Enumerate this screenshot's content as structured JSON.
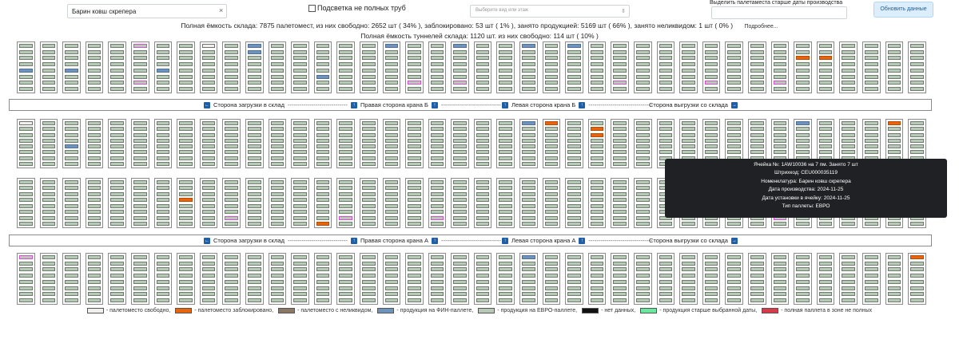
{
  "toolbar": {
    "search_value": "Барин ковш скрепера",
    "clear_icon": "×",
    "highlight_label": "Подсветка не полных труб",
    "view_placeholder": "Выберите вид или этаж",
    "date_label": "Выделить палетаместа старше даты производства",
    "refresh_label": "Обновить данные"
  },
  "summary": {
    "line1": "Полная ёмкость склада: 7875 палетомест, из них свободно: 2652 шт ( 34% ), заблокировано: 53 шт ( 1% ), занято продукцией: 5169 шт ( 66% ), занято неликвидом: 1 шт ( 0% )",
    "more_link": "Подробнее...",
    "line2": "Полная ёмкость туннелей склада: 1120 шт. из них свободно: 114 шт ( 10% )"
  },
  "colors": {
    "free": "#f2f0ec",
    "blocked": "#e8650d",
    "illiquid": "#8b7763",
    "fin": "#6e93bd",
    "euro": "#b8c9b8",
    "nodata": "#111111",
    "older": "#6ae8a0",
    "full_in_partial": "#d93a4a",
    "highlight": "#d84ed0",
    "button": "#1f5fa6"
  },
  "crane_b": {
    "load_side": "Сторона загрузки в склад",
    "right_side": "Правая сторона крана Б",
    "left_side": "Левая сторона крана Б",
    "unload_side": "Сторона выгрузки со склада",
    "arrow_left": "←",
    "arrow_right": "→",
    "arrow_up": "↑"
  },
  "crane_a": {
    "load_side": "Сторона загрузки в склад",
    "right_side": "Правая сторона крана А",
    "left_side": "Левая сторона крана А",
    "unload_side": "Сторона выгрузки со склада",
    "arrow_left": "←",
    "arrow_right": "→",
    "arrow_up": "↑"
  },
  "tooltip": {
    "line1": "Ячейка №: 1AW10036 на 7 пм. Занято 7 шт",
    "line2": "Штрихкод: CEU000035119",
    "line3": "Номенклатура: Барин ковш скрепера",
    "line4": "Дата производства: 2024-11-25",
    "line5": "Дата установки в ячейку: 2024-11-25",
    "line6": "Тип паллеты: ЕВРО"
  },
  "legend": [
    {
      "label": "- палетоместо свободно,",
      "color": "#f2f0ec"
    },
    {
      "label": "- палетоместо заблокировано,",
      "color": "#e8650d"
    },
    {
      "label": "- палетоместо с неликвидом,",
      "color": "#8b7763"
    },
    {
      "label": "- продукция на ФИН-паллете,",
      "color": "#6e93bd"
    },
    {
      "label": "- продукция на ЕВРО-паллете,",
      "color": "#b8c9b8"
    },
    {
      "label": "- нет данных,",
      "color": "#111111"
    },
    {
      "label": "- продукция старше выбранной даты,",
      "color": "#6ae8a0"
    },
    {
      "label": "- полная паллета в зоне не полных",
      "color": "#d93a4a"
    }
  ],
  "banks": [
    {
      "name": "rack-row-1",
      "columns": [
        "eeeefeee",
        "eeeeeeee",
        "eeeefeee",
        "eeeeeeee",
        "eeeeeeee",
        "HeeeeeHe",
        "eeeefeee",
        "eeeeeeee",
        "weeeeeee",
        "eeeeeeee",
        "ffeeeeee",
        "eeeeeeee",
        "eeeeeeee",
        "eeeeefee",
        "eeeeeeee",
        "eeeeeeee",
        "feeeeeee",
        "eeeeeeHe",
        "eeeeeeee",
        "feeeeeHe",
        "eeeeeeee",
        "eeeeeeee",
        "feeeeeee",
        "eeeeeeee",
        "feeeeeee",
        "eeeeeeee",
        "eeeeeeHe",
        "eeeeeeee",
        "eeeeeeee",
        "eeeeeeee",
        "eeeeeeHe",
        "eeeeeeee",
        "eeeeeeee",
        "eeeeeeHe",
        "eebeeeee",
        "eebeeeee",
        "eeeeeeee",
        "eeeeeeee",
        "eeeeeeee",
        "eeeeeeee"
      ]
    },
    {
      "name": "rack-row-2",
      "columns": [
        "weeeeeee",
        "eeeeeeee",
        "eeeefeee",
        "eeeeeeee",
        "eeeeeeee",
        "eeeeeeee",
        "eeeeeeee",
        "eeeeeeee",
        "eeeeeeee",
        "eeeeeeee",
        "eeeeeeee",
        "eeeeeeee",
        "eeeeeeee",
        "eeeeeeee",
        "eeeeeeee",
        "eeeeeeee",
        "eeeeeeee",
        "eeeeeeee",
        "eeeeeeee",
        "eeeeeeee",
        "eeeeeeee",
        "eeeeeeee",
        "feeeeeee",
        "beeeeeee",
        "eeeeeeee",
        "ebbeeeee",
        "eeeeeeee",
        "eeeeeeee",
        "eeeeeeee",
        "eeeeeeee",
        "eeeeeeee",
        "eeeeeeee",
        "eeeeeeee",
        "eeeeeeee",
        "feeeeeee",
        "eeeeeeee",
        "eeeeeeee",
        "eeeeeeee",
        "beeeeeee",
        "eeeeeeee"
      ]
    },
    {
      "name": "rack-row-3",
      "columns": [
        "eeeeeeee",
        "eeeeeeee",
        "eeeeeeee",
        "eeeeeeee",
        "eeeeeeee",
        "eeeeeeee",
        "eeeeeeee",
        "eeebeeee",
        "eeeeeeee",
        "eeeeeeHe",
        "eeeeeeee",
        "eeeeeeee",
        "eeeeeeee",
        "eeeeeeeb",
        "eeeeeeHe",
        "eeeeeeee",
        "eeeeeeee",
        "eeeeeeee",
        "eeeeeeHe",
        "eeeeeeee",
        "eeeeeeee",
        "eeeeeeee",
        "eeeeeeee",
        "eeeeeeee",
        "eeeeeeee",
        "eeeeeeee",
        "eeeeeeee",
        "eeeeeeee",
        "eeeeeeee",
        "eeeeeeee",
        "eeeeeeee",
        "eeeeeeee",
        "eeeeeeee",
        "eeeeeeHe",
        "eeeeeeee",
        "eeeeeeee",
        "eeeeeeee",
        "eeeeeeee",
        "eeeeeeee",
        "eeeeeeee"
      ]
    },
    {
      "name": "rack-row-4",
      "columns": [
        "Heeeeeee",
        "eeeeeeee",
        "eeeeeeee",
        "eeeeeeee",
        "eeeeeeee",
        "eeeeeeee",
        "eeeeeeee",
        "eeeeeeee",
        "eeeeeeee",
        "eeeeeeee",
        "eeeeeeee",
        "eeeeeeee",
        "eeeeeeee",
        "eeeeeeee",
        "eeeeeeee",
        "eeeeeeee",
        "eeeeeeee",
        "eeeeeeee",
        "eeeeeeee",
        "eeeeeeee",
        "eeeeeeee",
        "eeeeeeee",
        "feeeeeee",
        "eeeeeeee",
        "eeeeeeee",
        "eeeeeeee",
        "eeeeeeee",
        "eeeeeeee",
        "eeeeeeee",
        "eeeeeeee",
        "eeeeeeee",
        "eeeeeeee",
        "eeeeeeee",
        "eeeeeeee",
        "eeeeeeee",
        "eeeeeeee",
        "eeeeeeee",
        "eeeeeeee",
        "eeeeeeee",
        "beeeeeee"
      ]
    }
  ]
}
